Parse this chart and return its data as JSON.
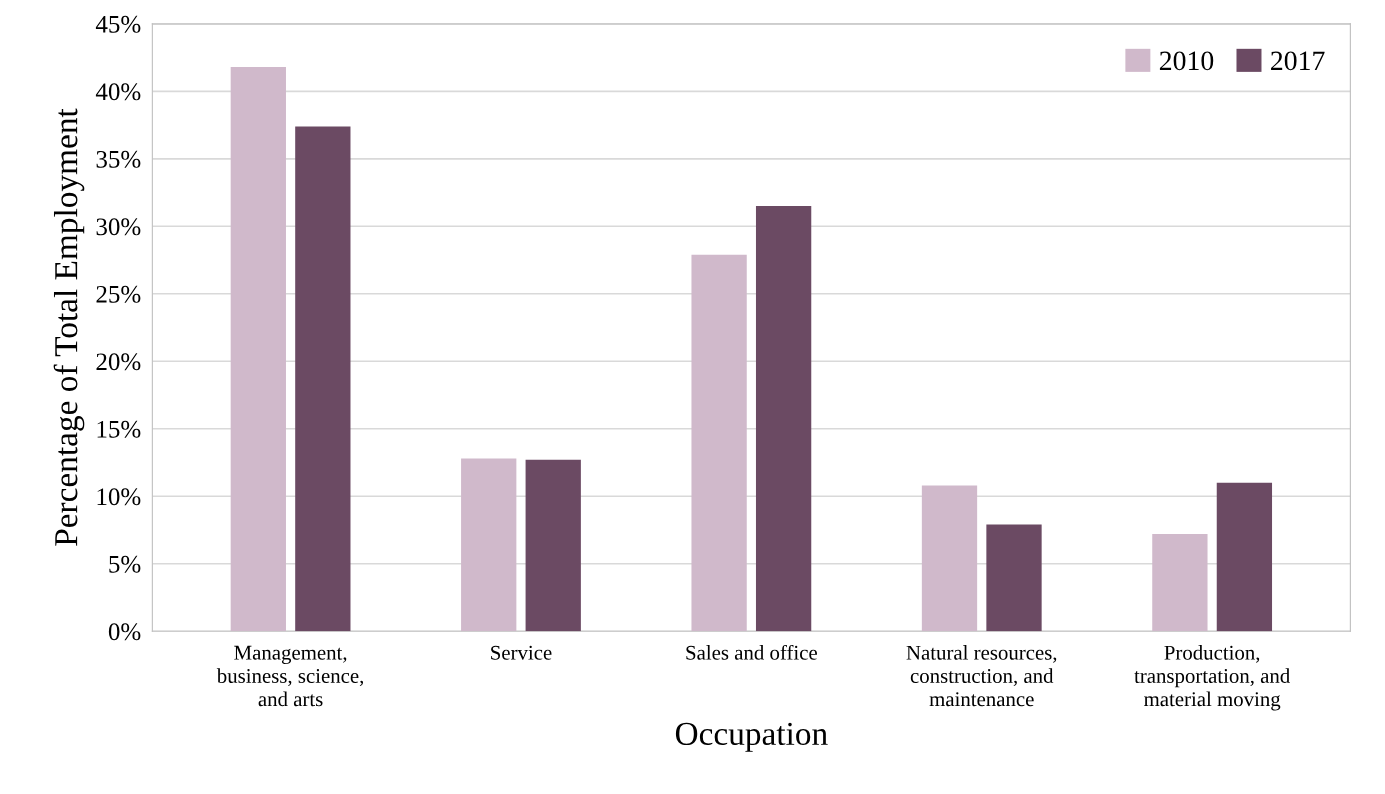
{
  "chart_data": {
    "type": "bar",
    "xlabel": "Occupation",
    "ylabel": "Percentage of Total Employment",
    "categories": [
      "Management,\nbusiness, science,\nand arts",
      "Service",
      "Sales and office",
      "Natural resources,\nconstruction, and\nmaintenance",
      "Production,\ntransportation, and\nmaterial moving"
    ],
    "series": [
      {
        "name": "2010",
        "color": "#d0b9cb",
        "values": [
          41.8,
          12.8,
          27.9,
          10.8,
          7.2
        ]
      },
      {
        "name": "2017",
        "color": "#6b4a63",
        "values": [
          37.4,
          12.7,
          31.5,
          7.9,
          11.0
        ]
      }
    ],
    "ylim": [
      0,
      45
    ],
    "yticks": [
      {
        "value": 0,
        "label": "0%"
      },
      {
        "value": 5,
        "label": "5%"
      },
      {
        "value": 10,
        "label": "10%"
      },
      {
        "value": 15,
        "label": "15%"
      },
      {
        "value": 20,
        "label": "20%"
      },
      {
        "value": 25,
        "label": "25%"
      },
      {
        "value": 30,
        "label": "30%"
      },
      {
        "value": 35,
        "label": "35%"
      },
      {
        "value": 40,
        "label": "40%"
      },
      {
        "value": 45,
        "label": "45%"
      }
    ],
    "grid": "y",
    "legend": "top right"
  }
}
